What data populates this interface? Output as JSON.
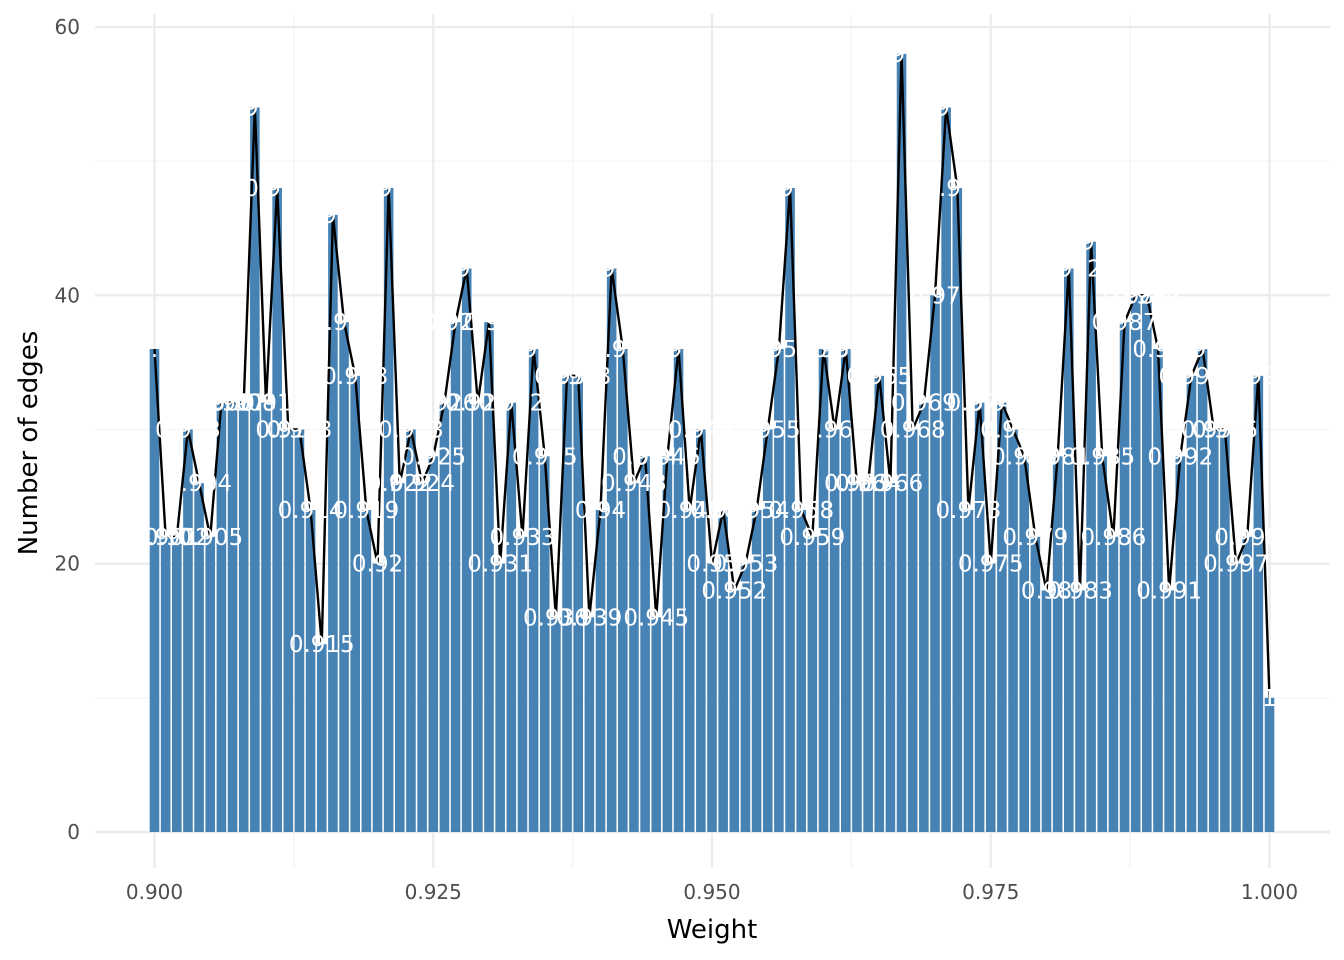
{
  "chart_data": {
    "type": "bar",
    "xlabel": "Weight",
    "ylabel": "Number of edges",
    "xlim": [
      0.9,
      1.0
    ],
    "ylim": [
      0,
      60
    ],
    "x_ticks": [
      "0.900",
      "0.925",
      "0.950",
      "0.975",
      "1.000"
    ],
    "y_ticks": [
      "0",
      "20",
      "40",
      "60"
    ],
    "grid": true,
    "legend": "none",
    "overlay_line": true,
    "bar_color": "#4682b4",
    "line_color": "#000000",
    "label_color": "#ffffff",
    "bars": [
      {
        "x": 0.9,
        "count": 36,
        "label": "0.9"
      },
      {
        "x": 0.901,
        "count": 22,
        "label": "0.901"
      },
      {
        "x": 0.902,
        "count": 22,
        "label": "0.902"
      },
      {
        "x": 0.903,
        "count": 30,
        "label": "0.903"
      },
      {
        "x": 0.904,
        "count": 26,
        "label": "0.904"
      },
      {
        "x": 0.905,
        "count": 22,
        "label": "0.905"
      },
      {
        "x": 0.906,
        "count": 32,
        "label": "0.906"
      },
      {
        "x": 0.907,
        "count": 32,
        "label": "0.907"
      },
      {
        "x": 0.908,
        "count": 32,
        "label": "0.908"
      },
      {
        "x": 0.909,
        "count": 54,
        "label": "0.909"
      },
      {
        "x": 0.91,
        "count": 32,
        "label": "0.91"
      },
      {
        "x": 0.911,
        "count": 48,
        "label": "0.911"
      },
      {
        "x": 0.912,
        "count": 30,
        "label": "0.912"
      },
      {
        "x": 0.913,
        "count": 30,
        "label": "0.913"
      },
      {
        "x": 0.914,
        "count": 24,
        "label": "0.914"
      },
      {
        "x": 0.915,
        "count": 14,
        "label": "0.915"
      },
      {
        "x": 0.916,
        "count": 46,
        "label": "0.916"
      },
      {
        "x": 0.917,
        "count": 38,
        "label": "0.917"
      },
      {
        "x": 0.918,
        "count": 34,
        "label": "0.918"
      },
      {
        "x": 0.919,
        "count": 24,
        "label": "0.919"
      },
      {
        "x": 0.92,
        "count": 20,
        "label": "0.92"
      },
      {
        "x": 0.921,
        "count": 48,
        "label": "0.921"
      },
      {
        "x": 0.922,
        "count": 26,
        "label": "0.922"
      },
      {
        "x": 0.923,
        "count": 30,
        "label": "0.923"
      },
      {
        "x": 0.924,
        "count": 26,
        "label": "0.924"
      },
      {
        "x": 0.925,
        "count": 28,
        "label": "0.925"
      },
      {
        "x": 0.926,
        "count": 32,
        "label": "0.926"
      },
      {
        "x": 0.927,
        "count": 38,
        "label": "0.927"
      },
      {
        "x": 0.928,
        "count": 42,
        "label": "0.928"
      },
      {
        "x": 0.929,
        "count": 32,
        "label": "0.929"
      },
      {
        "x": 0.93,
        "count": 38,
        "label": "0.93"
      },
      {
        "x": 0.931,
        "count": 20,
        "label": "0.931"
      },
      {
        "x": 0.932,
        "count": 32,
        "label": "0.932"
      },
      {
        "x": 0.933,
        "count": 22,
        "label": "0.933"
      },
      {
        "x": 0.934,
        "count": 36,
        "label": "0.934"
      },
      {
        "x": 0.935,
        "count": 28,
        "label": "0.935"
      },
      {
        "x": 0.936,
        "count": 16,
        "label": "0.936"
      },
      {
        "x": 0.937,
        "count": 34,
        "label": "0.937"
      },
      {
        "x": 0.938,
        "count": 34,
        "label": "0.938"
      },
      {
        "x": 0.939,
        "count": 16,
        "label": "0.939"
      },
      {
        "x": 0.94,
        "count": 24,
        "label": "0.94"
      },
      {
        "x": 0.941,
        "count": 42,
        "label": "0.941"
      },
      {
        "x": 0.942,
        "count": 36,
        "label": "0.942"
      },
      {
        "x": 0.943,
        "count": 26,
        "label": "0.943"
      },
      {
        "x": 0.944,
        "count": 28,
        "label": "0.944"
      },
      {
        "x": 0.945,
        "count": 16,
        "label": "0.945"
      },
      {
        "x": 0.946,
        "count": 28,
        "label": "0.946"
      },
      {
        "x": 0.947,
        "count": 36,
        "label": "0.947"
      },
      {
        "x": 0.948,
        "count": 24,
        "label": "0.948"
      },
      {
        "x": 0.949,
        "count": 30,
        "label": "0.949"
      },
      {
        "x": 0.95,
        "count": 20,
        "label": "0.95"
      },
      {
        "x": 0.951,
        "count": 24,
        "label": "0.951"
      },
      {
        "x": 0.952,
        "count": 18,
        "label": "0.952"
      },
      {
        "x": 0.953,
        "count": 20,
        "label": "0.953"
      },
      {
        "x": 0.954,
        "count": 24,
        "label": "0.954"
      },
      {
        "x": 0.955,
        "count": 30,
        "label": "0.955"
      },
      {
        "x": 0.956,
        "count": 36,
        "label": "0.956"
      },
      {
        "x": 0.957,
        "count": 48,
        "label": "0.957"
      },
      {
        "x": 0.958,
        "count": 24,
        "label": "0.958"
      },
      {
        "x": 0.959,
        "count": 22,
        "label": "0.959"
      },
      {
        "x": 0.96,
        "count": 36,
        "label": "0.96"
      },
      {
        "x": 0.961,
        "count": 30,
        "label": "0.961"
      },
      {
        "x": 0.962,
        "count": 36,
        "label": "0.962"
      },
      {
        "x": 0.963,
        "count": 26,
        "label": "0.963"
      },
      {
        "x": 0.964,
        "count": 26,
        "label": "0.964"
      },
      {
        "x": 0.965,
        "count": 34,
        "label": "0.965"
      },
      {
        "x": 0.966,
        "count": 26,
        "label": "0.966"
      },
      {
        "x": 0.967,
        "count": 58,
        "label": "0.967"
      },
      {
        "x": 0.968,
        "count": 30,
        "label": "0.968"
      },
      {
        "x": 0.969,
        "count": 32,
        "label": "0.969"
      },
      {
        "x": 0.97,
        "count": 40,
        "label": "0.97"
      },
      {
        "x": 0.971,
        "count": 54,
        "label": "0.971"
      },
      {
        "x": 0.972,
        "count": 48,
        "label": "0.972"
      },
      {
        "x": 0.973,
        "count": 24,
        "label": "0.973"
      },
      {
        "x": 0.974,
        "count": 32,
        "label": "0.974"
      },
      {
        "x": 0.975,
        "count": 20,
        "label": "0.975"
      },
      {
        "x": 0.976,
        "count": 32,
        "label": "0.976"
      },
      {
        "x": 0.977,
        "count": 30,
        "label": "0.977"
      },
      {
        "x": 0.978,
        "count": 28,
        "label": "0.978"
      },
      {
        "x": 0.979,
        "count": 22,
        "label": "0.979"
      },
      {
        "x": 0.98,
        "count": 18,
        "label": "0.98"
      },
      {
        "x": 0.981,
        "count": 28,
        "label": "0.981"
      },
      {
        "x": 0.982,
        "count": 42,
        "label": "0.982"
      },
      {
        "x": 0.983,
        "count": 18,
        "label": "0.983"
      },
      {
        "x": 0.984,
        "count": 44,
        "label": "0.984"
      },
      {
        "x": 0.985,
        "count": 28,
        "label": "0.985"
      },
      {
        "x": 0.986,
        "count": 22,
        "label": "0.986"
      },
      {
        "x": 0.987,
        "count": 38,
        "label": "0.987"
      },
      {
        "x": 0.988,
        "count": 40,
        "label": "0.988"
      },
      {
        "x": 0.989,
        "count": 40,
        "label": "0.989"
      },
      {
        "x": 0.99,
        "count": 36,
        "label": "0.99"
      },
      {
        "x": 0.991,
        "count": 18,
        "label": "0.991"
      },
      {
        "x": 0.992,
        "count": 28,
        "label": "0.992"
      },
      {
        "x": 0.993,
        "count": 34,
        "label": "0.993"
      },
      {
        "x": 0.994,
        "count": 36,
        "label": "0.994"
      },
      {
        "x": 0.995,
        "count": 30,
        "label": "0.995"
      },
      {
        "x": 0.996,
        "count": 30,
        "label": "0.996"
      },
      {
        "x": 0.997,
        "count": 20,
        "label": "0.997"
      },
      {
        "x": 0.998,
        "count": 22,
        "label": "0.998"
      },
      {
        "x": 0.999,
        "count": 34,
        "label": "0.999"
      },
      {
        "x": 1.0,
        "count": 10,
        "label": "1"
      }
    ]
  }
}
